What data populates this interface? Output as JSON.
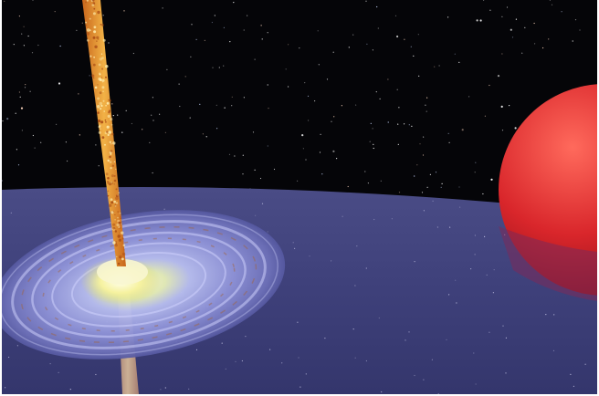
{
  "image": {
    "subject": "",
    "colors": {
      "space": "#050508",
      "disk_plane": "#3d3f78",
      "jet": "#e0872a",
      "jet_highlight": "#f6c25a",
      "core": "#f4f1a0",
      "companion_star": "#c41f24",
      "companion_shadow": "#6e2150",
      "galaxy_arm": "#b8b8f0"
    },
    "icons": [
      "star-field-icon",
      "accretion-disk-icon",
      "jet-icon",
      "red-star-icon"
    ]
  }
}
